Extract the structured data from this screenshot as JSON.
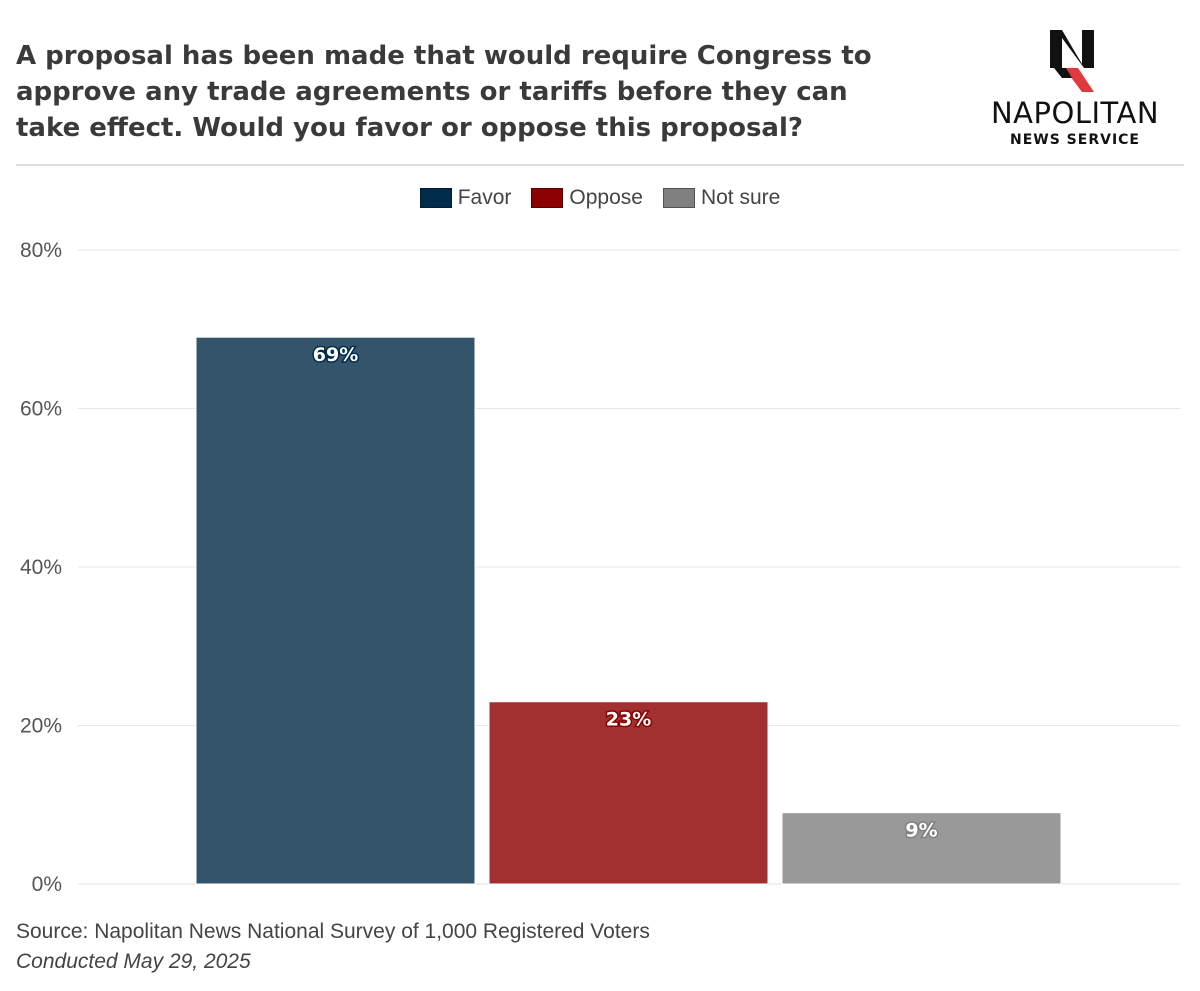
{
  "header": {
    "title": "A proposal has been made that would require Congress to approve any trade agreements or tariffs before they can take effect. Would you favor or oppose this proposal?"
  },
  "logo": {
    "wordmark": "NAPOLITAN",
    "subtitle": "NEWS SERVICE",
    "letter": "N"
  },
  "chart_data": {
    "type": "bar",
    "categories": [
      "Favor",
      "Oppose",
      "Not sure"
    ],
    "values": [
      69,
      23,
      9
    ],
    "data_labels": [
      "69%",
      "23%",
      "9%"
    ],
    "colors": [
      "#34546b",
      "#a33031",
      "#999999"
    ],
    "legend": [
      {
        "label": "Favor",
        "color": "#002b4a"
      },
      {
        "label": "Oppose",
        "color": "#8b0000"
      },
      {
        "label": "Not sure",
        "color": "#808080"
      }
    ],
    "legend_position": "top-center",
    "yticks": [
      "0%",
      "20%",
      "40%",
      "60%",
      "80%"
    ],
    "ytick_values": [
      0,
      20,
      40,
      60,
      80
    ],
    "ylim": [
      0,
      80
    ],
    "grid": true,
    "title": "",
    "xlabel": "",
    "ylabel": ""
  },
  "footer": {
    "source": "Source: Napolitan News National Survey of 1,000 Registered Voters",
    "date": "Conducted May 29, 2025"
  }
}
